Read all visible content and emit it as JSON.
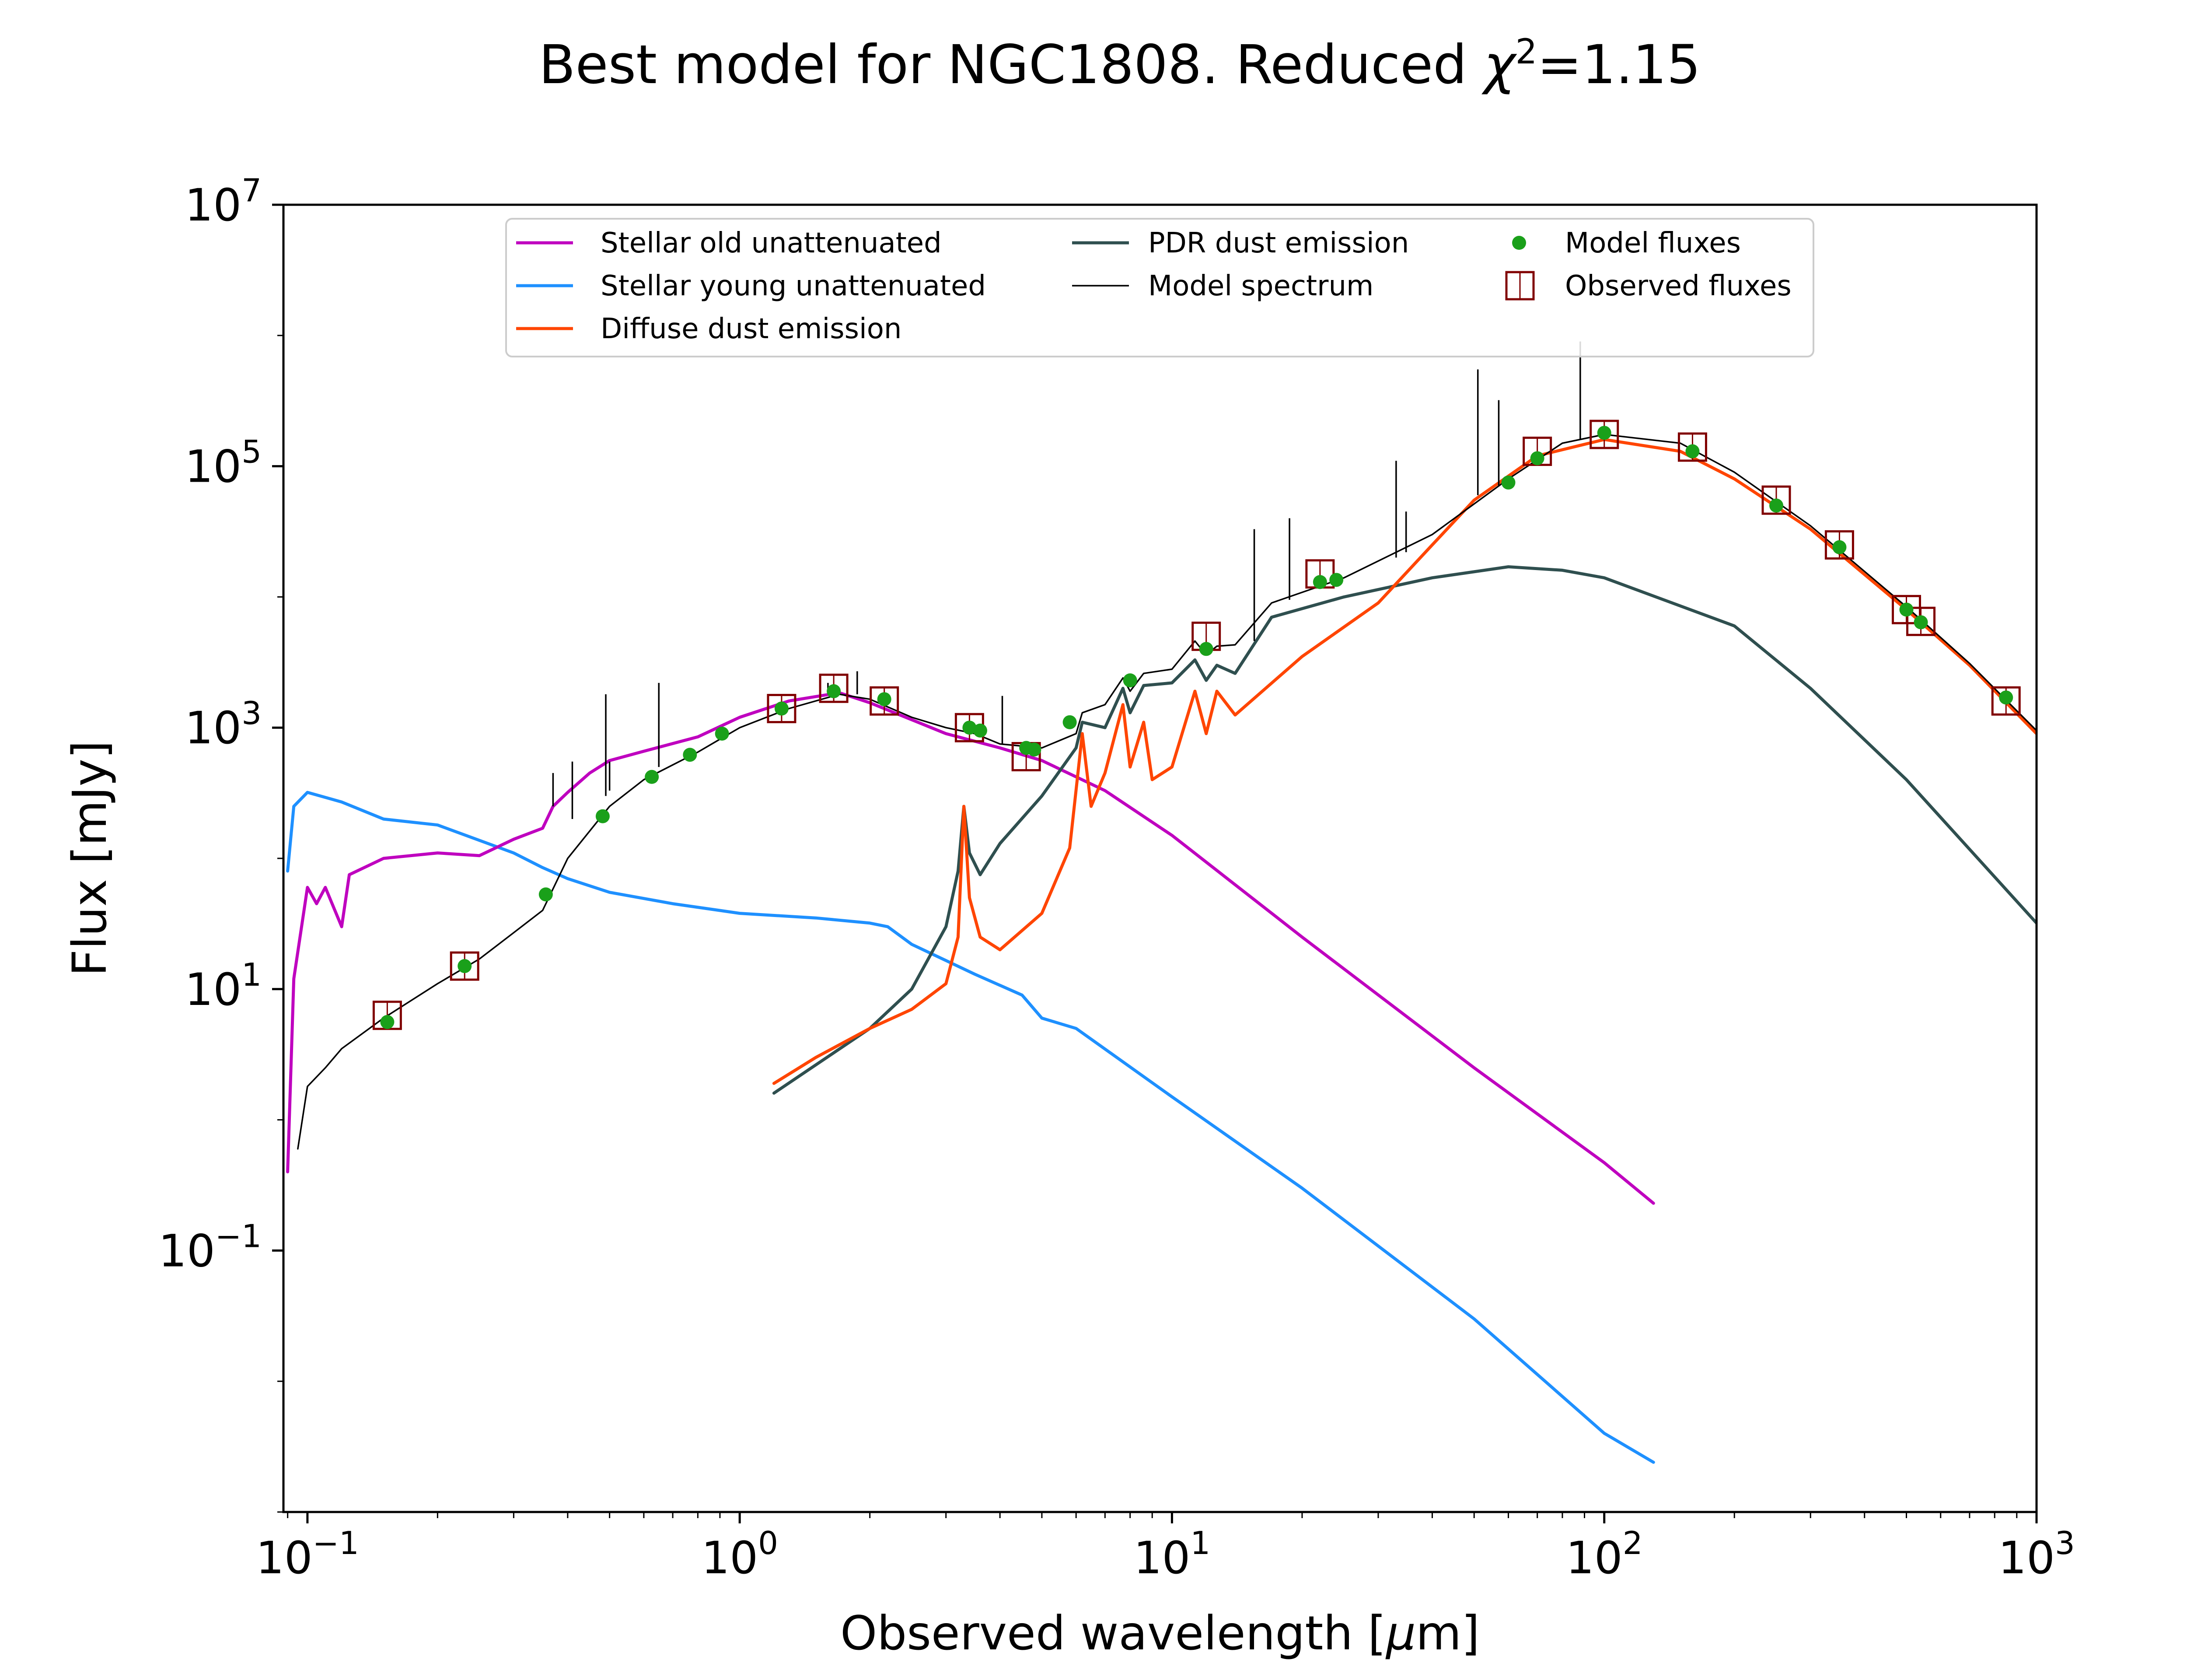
{
  "chart_data": {
    "type": "line",
    "title": {
      "prefix": "Best model for NGC1808. Reduced ",
      "chi": "χ",
      "sup": "2",
      "suffix": "=1.15"
    },
    "xlabel": {
      "text": "Observed wavelength [",
      "mu": "μ",
      "unit": "m]"
    },
    "ylabel": "Flux [mJy]",
    "xscale": "log",
    "yscale": "log",
    "xlim": [
      0.088,
      1000
    ],
    "ylim": [
      0.001,
      10000000
    ],
    "xticks": [
      {
        "value": 0.1,
        "base": "10",
        "exp": "−1"
      },
      {
        "value": 1,
        "base": "10",
        "exp": "0"
      },
      {
        "value": 10,
        "base": "10",
        "exp": "1"
      },
      {
        "value": 100,
        "base": "10",
        "exp": "2"
      },
      {
        "value": 1000,
        "base": "10",
        "exp": "3"
      }
    ],
    "yticks": [
      {
        "value": 0.1,
        "base": "10",
        "exp": "−1"
      },
      {
        "value": 10,
        "base": "10",
        "exp": "1"
      },
      {
        "value": 1000,
        "base": "10",
        "exp": "3"
      },
      {
        "value": 100000,
        "base": "10",
        "exp": "5"
      },
      {
        "value": 10000000,
        "base": "10",
        "exp": "7"
      }
    ],
    "legend_position": "upper center",
    "legend": [
      {
        "label": "Stellar old unattenuated",
        "kind": "line",
        "color": "#bf00bf"
      },
      {
        "label": "Stellar young unattenuated",
        "kind": "line",
        "color": "#1e90ff"
      },
      {
        "label": "Diffuse dust emission",
        "kind": "line",
        "color": "#ff4500"
      },
      {
        "label": "PDR dust emission",
        "kind": "line",
        "color": "#2f4f4f"
      },
      {
        "label": "Model spectrum",
        "kind": "thinline",
        "color": "#000000"
      },
      {
        "label": "Model fluxes",
        "kind": "dot",
        "color": "#1aa01a"
      },
      {
        "label": "Observed fluxes",
        "kind": "square",
        "color": "#800000"
      }
    ],
    "series": [
      {
        "name": "Stellar old unattenuated",
        "color": "#bf00bf",
        "points": [
          [
            0.09,
            0.4
          ],
          [
            0.093,
            12
          ],
          [
            0.1,
            60
          ],
          [
            0.105,
            45
          ],
          [
            0.11,
            60
          ],
          [
            0.12,
            30
          ],
          [
            0.125,
            75
          ],
          [
            0.15,
            100
          ],
          [
            0.2,
            110
          ],
          [
            0.25,
            105
          ],
          [
            0.3,
            140
          ],
          [
            0.35,
            170
          ],
          [
            0.37,
            250
          ],
          [
            0.4,
            320
          ],
          [
            0.45,
            450
          ],
          [
            0.5,
            560
          ],
          [
            0.6,
            660
          ],
          [
            0.8,
            850
          ],
          [
            1.0,
            1200
          ],
          [
            1.3,
            1600
          ],
          [
            1.7,
            1850
          ],
          [
            2.0,
            1550
          ],
          [
            2.5,
            1150
          ],
          [
            3.0,
            900
          ],
          [
            4.0,
            700
          ],
          [
            5.0,
            560
          ],
          [
            7.0,
            330
          ],
          [
            10.0,
            150
          ],
          [
            20.0,
            25
          ],
          [
            50.0,
            2.5
          ],
          [
            100.0,
            0.47
          ],
          [
            130.0,
            0.23
          ]
        ]
      },
      {
        "name": "Stellar young unattenuated",
        "color": "#1e90ff",
        "points": [
          [
            0.09,
            80
          ],
          [
            0.093,
            250
          ],
          [
            0.1,
            320
          ],
          [
            0.12,
            270
          ],
          [
            0.15,
            200
          ],
          [
            0.2,
            180
          ],
          [
            0.3,
            110
          ],
          [
            0.35,
            85
          ],
          [
            0.4,
            70
          ],
          [
            0.5,
            55
          ],
          [
            0.7,
            45
          ],
          [
            1.0,
            38
          ],
          [
            1.5,
            35
          ],
          [
            2.0,
            32
          ],
          [
            2.2,
            30
          ],
          [
            2.5,
            22
          ],
          [
            3.5,
            13
          ],
          [
            4.5,
            9
          ],
          [
            5.0,
            6
          ],
          [
            6.0,
            5
          ],
          [
            10.0,
            1.5
          ],
          [
            20.0,
            0.3
          ],
          [
            50.0,
            0.03
          ],
          [
            100.0,
            0.004
          ],
          [
            130.0,
            0.0024
          ]
        ]
      },
      {
        "name": "Diffuse dust emission",
        "color": "#ff4500",
        "points": [
          [
            1.2,
            1.9
          ],
          [
            1.5,
            3
          ],
          [
            2.0,
            5
          ],
          [
            2.5,
            7
          ],
          [
            3.0,
            11
          ],
          [
            3.2,
            25
          ],
          [
            3.3,
            250
          ],
          [
            3.4,
            50
          ],
          [
            3.6,
            25
          ],
          [
            4.0,
            20
          ],
          [
            5.0,
            38
          ],
          [
            5.8,
            120
          ],
          [
            6.2,
            900
          ],
          [
            6.5,
            250
          ],
          [
            7.0,
            450
          ],
          [
            7.7,
            1500
          ],
          [
            8.0,
            500
          ],
          [
            8.6,
            1100
          ],
          [
            9.0,
            400
          ],
          [
            10.0,
            500
          ],
          [
            11.3,
            1900
          ],
          [
            12.0,
            900
          ],
          [
            12.7,
            1900
          ],
          [
            14.0,
            1250
          ],
          [
            20.0,
            3500
          ],
          [
            30.0,
            9000
          ],
          [
            40.0,
            25000
          ],
          [
            50.0,
            55000
          ],
          [
            70.0,
            120000
          ],
          [
            100.0,
            160000
          ],
          [
            150.0,
            130000
          ],
          [
            200.0,
            80000
          ],
          [
            300.0,
            33000
          ],
          [
            500.0,
            8000
          ],
          [
            700.0,
            3000
          ],
          [
            1000.0,
            900
          ]
        ]
      },
      {
        "name": "PDR dust emission",
        "color": "#2f4f4f",
        "points": [
          [
            1.2,
            1.6
          ],
          [
            2.0,
            5
          ],
          [
            2.5,
            10
          ],
          [
            3.0,
            30
          ],
          [
            3.2,
            80
          ],
          [
            3.3,
            250
          ],
          [
            3.4,
            110
          ],
          [
            3.6,
            75
          ],
          [
            4.0,
            130
          ],
          [
            5.0,
            300
          ],
          [
            6.0,
            700
          ],
          [
            6.2,
            1100
          ],
          [
            7.0,
            1000
          ],
          [
            7.7,
            2000
          ],
          [
            8.0,
            1300
          ],
          [
            8.6,
            2100
          ],
          [
            10.0,
            2200
          ],
          [
            11.3,
            3300
          ],
          [
            12.0,
            2300
          ],
          [
            12.7,
            3000
          ],
          [
            14.0,
            2600
          ],
          [
            17.0,
            7000
          ],
          [
            25.0,
            10000
          ],
          [
            40.0,
            14000
          ],
          [
            60.0,
            17000
          ],
          [
            80.0,
            16000
          ],
          [
            100.0,
            14000
          ],
          [
            200.0,
            6000
          ],
          [
            300.0,
            2000
          ],
          [
            500.0,
            400
          ],
          [
            1000.0,
            32
          ]
        ]
      },
      {
        "name": "Model spectrum",
        "color": "#000000",
        "points": [
          [
            0.095,
            0.6
          ],
          [
            0.1,
            1.8
          ],
          [
            0.11,
            2.5
          ],
          [
            0.12,
            3.5
          ],
          [
            0.15,
            6
          ],
          [
            0.2,
            11
          ],
          [
            0.25,
            17
          ],
          [
            0.3,
            27
          ],
          [
            0.35,
            40
          ],
          [
            0.4,
            100
          ],
          [
            0.5,
            250
          ],
          [
            0.6,
            400
          ],
          [
            0.8,
            650
          ],
          [
            1.0,
            1000
          ],
          [
            1.3,
            1400
          ],
          [
            1.7,
            1800
          ],
          [
            2.0,
            1650
          ],
          [
            2.5,
            1200
          ],
          [
            3.0,
            1000
          ],
          [
            3.5,
            900
          ],
          [
            4.0,
            750
          ],
          [
            5.0,
            700
          ],
          [
            6.0,
            900
          ],
          [
            6.2,
            1300
          ],
          [
            7.0,
            1500
          ],
          [
            7.7,
            2400
          ],
          [
            8.0,
            1900
          ],
          [
            8.6,
            2600
          ],
          [
            10.0,
            2800
          ],
          [
            11.3,
            4600
          ],
          [
            12.0,
            3600
          ],
          [
            12.7,
            4200
          ],
          [
            14.0,
            4300
          ],
          [
            17.0,
            9000
          ],
          [
            25.0,
            14000
          ],
          [
            40.0,
            30000
          ],
          [
            60.0,
            80000
          ],
          [
            80.0,
            150000
          ],
          [
            100.0,
            175000
          ],
          [
            150.0,
            150000
          ],
          [
            200.0,
            90000
          ],
          [
            300.0,
            35000
          ],
          [
            500.0,
            8400
          ],
          [
            700.0,
            3100
          ],
          [
            1000.0,
            950
          ]
        ],
        "spikes": [
          [
            0.37,
            250,
            450
          ],
          [
            0.41,
            200,
            550
          ],
          [
            0.49,
            300,
            1800
          ],
          [
            0.5,
            330,
            550
          ],
          [
            0.65,
            500,
            2200
          ],
          [
            1.6,
            1800,
            2200
          ],
          [
            1.87,
            1800,
            2700
          ],
          [
            4.05,
            740,
            1750
          ],
          [
            15.5,
            4600,
            33000
          ],
          [
            18.7,
            9500,
            40000
          ],
          [
            33.0,
            20000,
            110000
          ],
          [
            34.8,
            22000,
            45000
          ],
          [
            51.0,
            60000,
            550000
          ],
          [
            57.0,
            70000,
            320000
          ],
          [
            88.0,
            160000,
            900000
          ]
        ]
      }
    ],
    "model_fluxes": [
      [
        0.153,
        5.6
      ],
      [
        0.231,
        15
      ],
      [
        0.356,
        53
      ],
      [
        0.482,
        210
      ],
      [
        0.626,
        420
      ],
      [
        0.767,
        620
      ],
      [
        0.91,
        900
      ],
      [
        1.25,
        1400
      ],
      [
        1.65,
        1900
      ],
      [
        2.16,
        1650
      ],
      [
        3.4,
        1000
      ],
      [
        3.6,
        950
      ],
      [
        4.6,
        700
      ],
      [
        4.8,
        680
      ],
      [
        5.8,
        1100
      ],
      [
        8.0,
        2300
      ],
      [
        12.0,
        4000
      ],
      [
        22.0,
        13000
      ],
      [
        24.0,
        13500
      ],
      [
        60.0,
        75000
      ],
      [
        70.0,
        115000
      ],
      [
        100.0,
        180000
      ],
      [
        160.0,
        130000
      ],
      [
        250.0,
        50000
      ],
      [
        350.0,
        24000
      ],
      [
        500.0,
        8000
      ],
      [
        540.0,
        6400
      ],
      [
        850.0,
        1700
      ]
    ],
    "observed_fluxes": [
      [
        0.153,
        6.3
      ],
      [
        0.231,
        15
      ],
      [
        1.25,
        1400
      ],
      [
        1.65,
        2000
      ],
      [
        2.16,
        1600
      ],
      [
        3.4,
        1000
      ],
      [
        4.6,
        600
      ],
      [
        12.0,
        5000
      ],
      [
        22.0,
        15000
      ],
      [
        70.0,
        130000
      ],
      [
        100.0,
        175000
      ],
      [
        160.0,
        140000
      ],
      [
        250.0,
        55000
      ],
      [
        350.0,
        25000
      ],
      [
        500.0,
        8000
      ],
      [
        540.0,
        6500
      ],
      [
        850.0,
        1600
      ]
    ]
  }
}
